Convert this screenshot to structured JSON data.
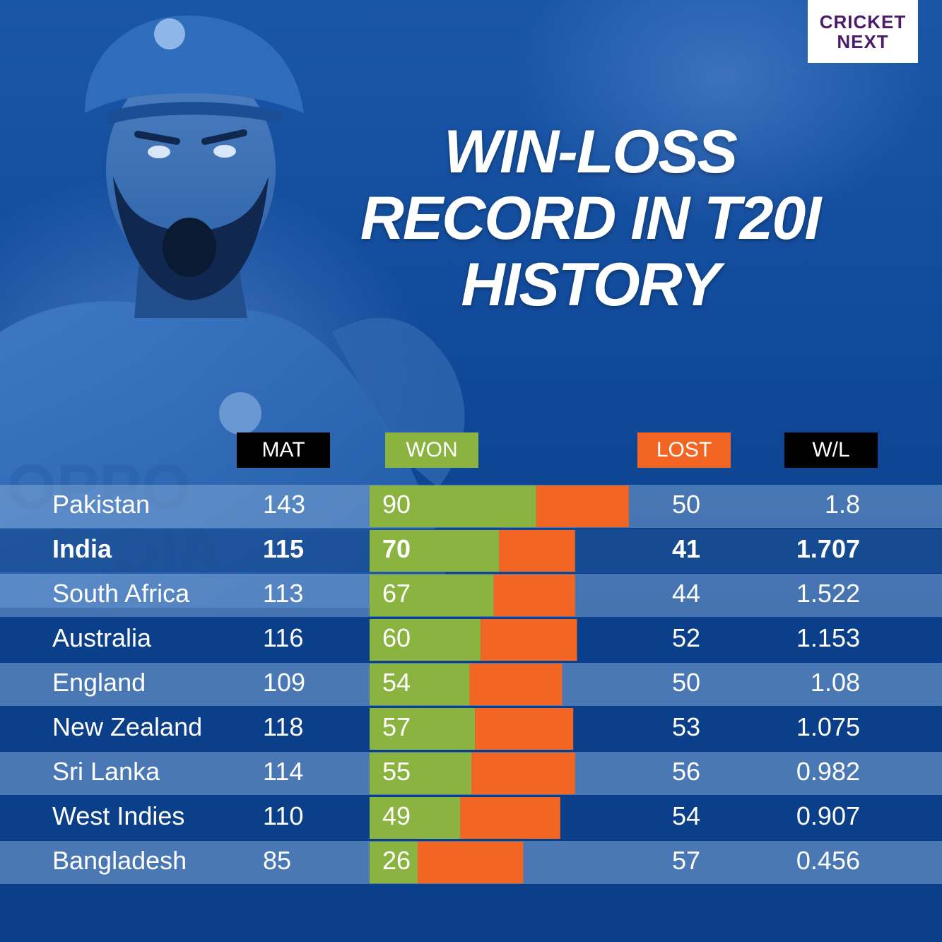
{
  "logo": {
    "line1": "CRICKET",
    "line2": "NEXT"
  },
  "title": {
    "line1": "WIN-LOSS",
    "line2": "RECORD IN T20I",
    "line3": "HISTORY"
  },
  "headers": {
    "mat": "MAT",
    "won": "WON",
    "lost": "LOST",
    "wl": "W/L"
  },
  "colors": {
    "won": "#8ab33f",
    "lost": "#f26522",
    "header_bg": "#000000",
    "row_light": "#4a78b5",
    "row_dark": "#0c3f8a"
  },
  "chart_data": {
    "type": "table",
    "columns": [
      "MAT",
      "WON",
      "LOST",
      "W/L"
    ],
    "rows": [
      {
        "team": "Pakistan",
        "mat": 143,
        "won": 90,
        "lost": 50,
        "wl": "1.8",
        "highlight": false
      },
      {
        "team": "India",
        "mat": 115,
        "won": 70,
        "lost": 41,
        "wl": "1.707",
        "highlight": true
      },
      {
        "team": "South Africa",
        "mat": 113,
        "won": 67,
        "lost": 44,
        "wl": "1.522",
        "highlight": false
      },
      {
        "team": "Australia",
        "mat": 116,
        "won": 60,
        "lost": 52,
        "wl": "1.153",
        "highlight": false
      },
      {
        "team": "England",
        "mat": 109,
        "won": 54,
        "lost": 50,
        "wl": "1.08",
        "highlight": false
      },
      {
        "team": "New Zealand",
        "mat": 118,
        "won": 57,
        "lost": 53,
        "wl": "1.075",
        "highlight": false
      },
      {
        "team": "Sri Lanka",
        "mat": 114,
        "won": 55,
        "lost": 56,
        "wl": "0.982",
        "highlight": false
      },
      {
        "team": "West Indies",
        "mat": 110,
        "won": 49,
        "lost": 54,
        "wl": "0.907",
        "highlight": false
      },
      {
        "team": "Bangladesh",
        "mat": 85,
        "won": 26,
        "lost": 57,
        "wl": "0.456",
        "highlight": false
      }
    ]
  }
}
